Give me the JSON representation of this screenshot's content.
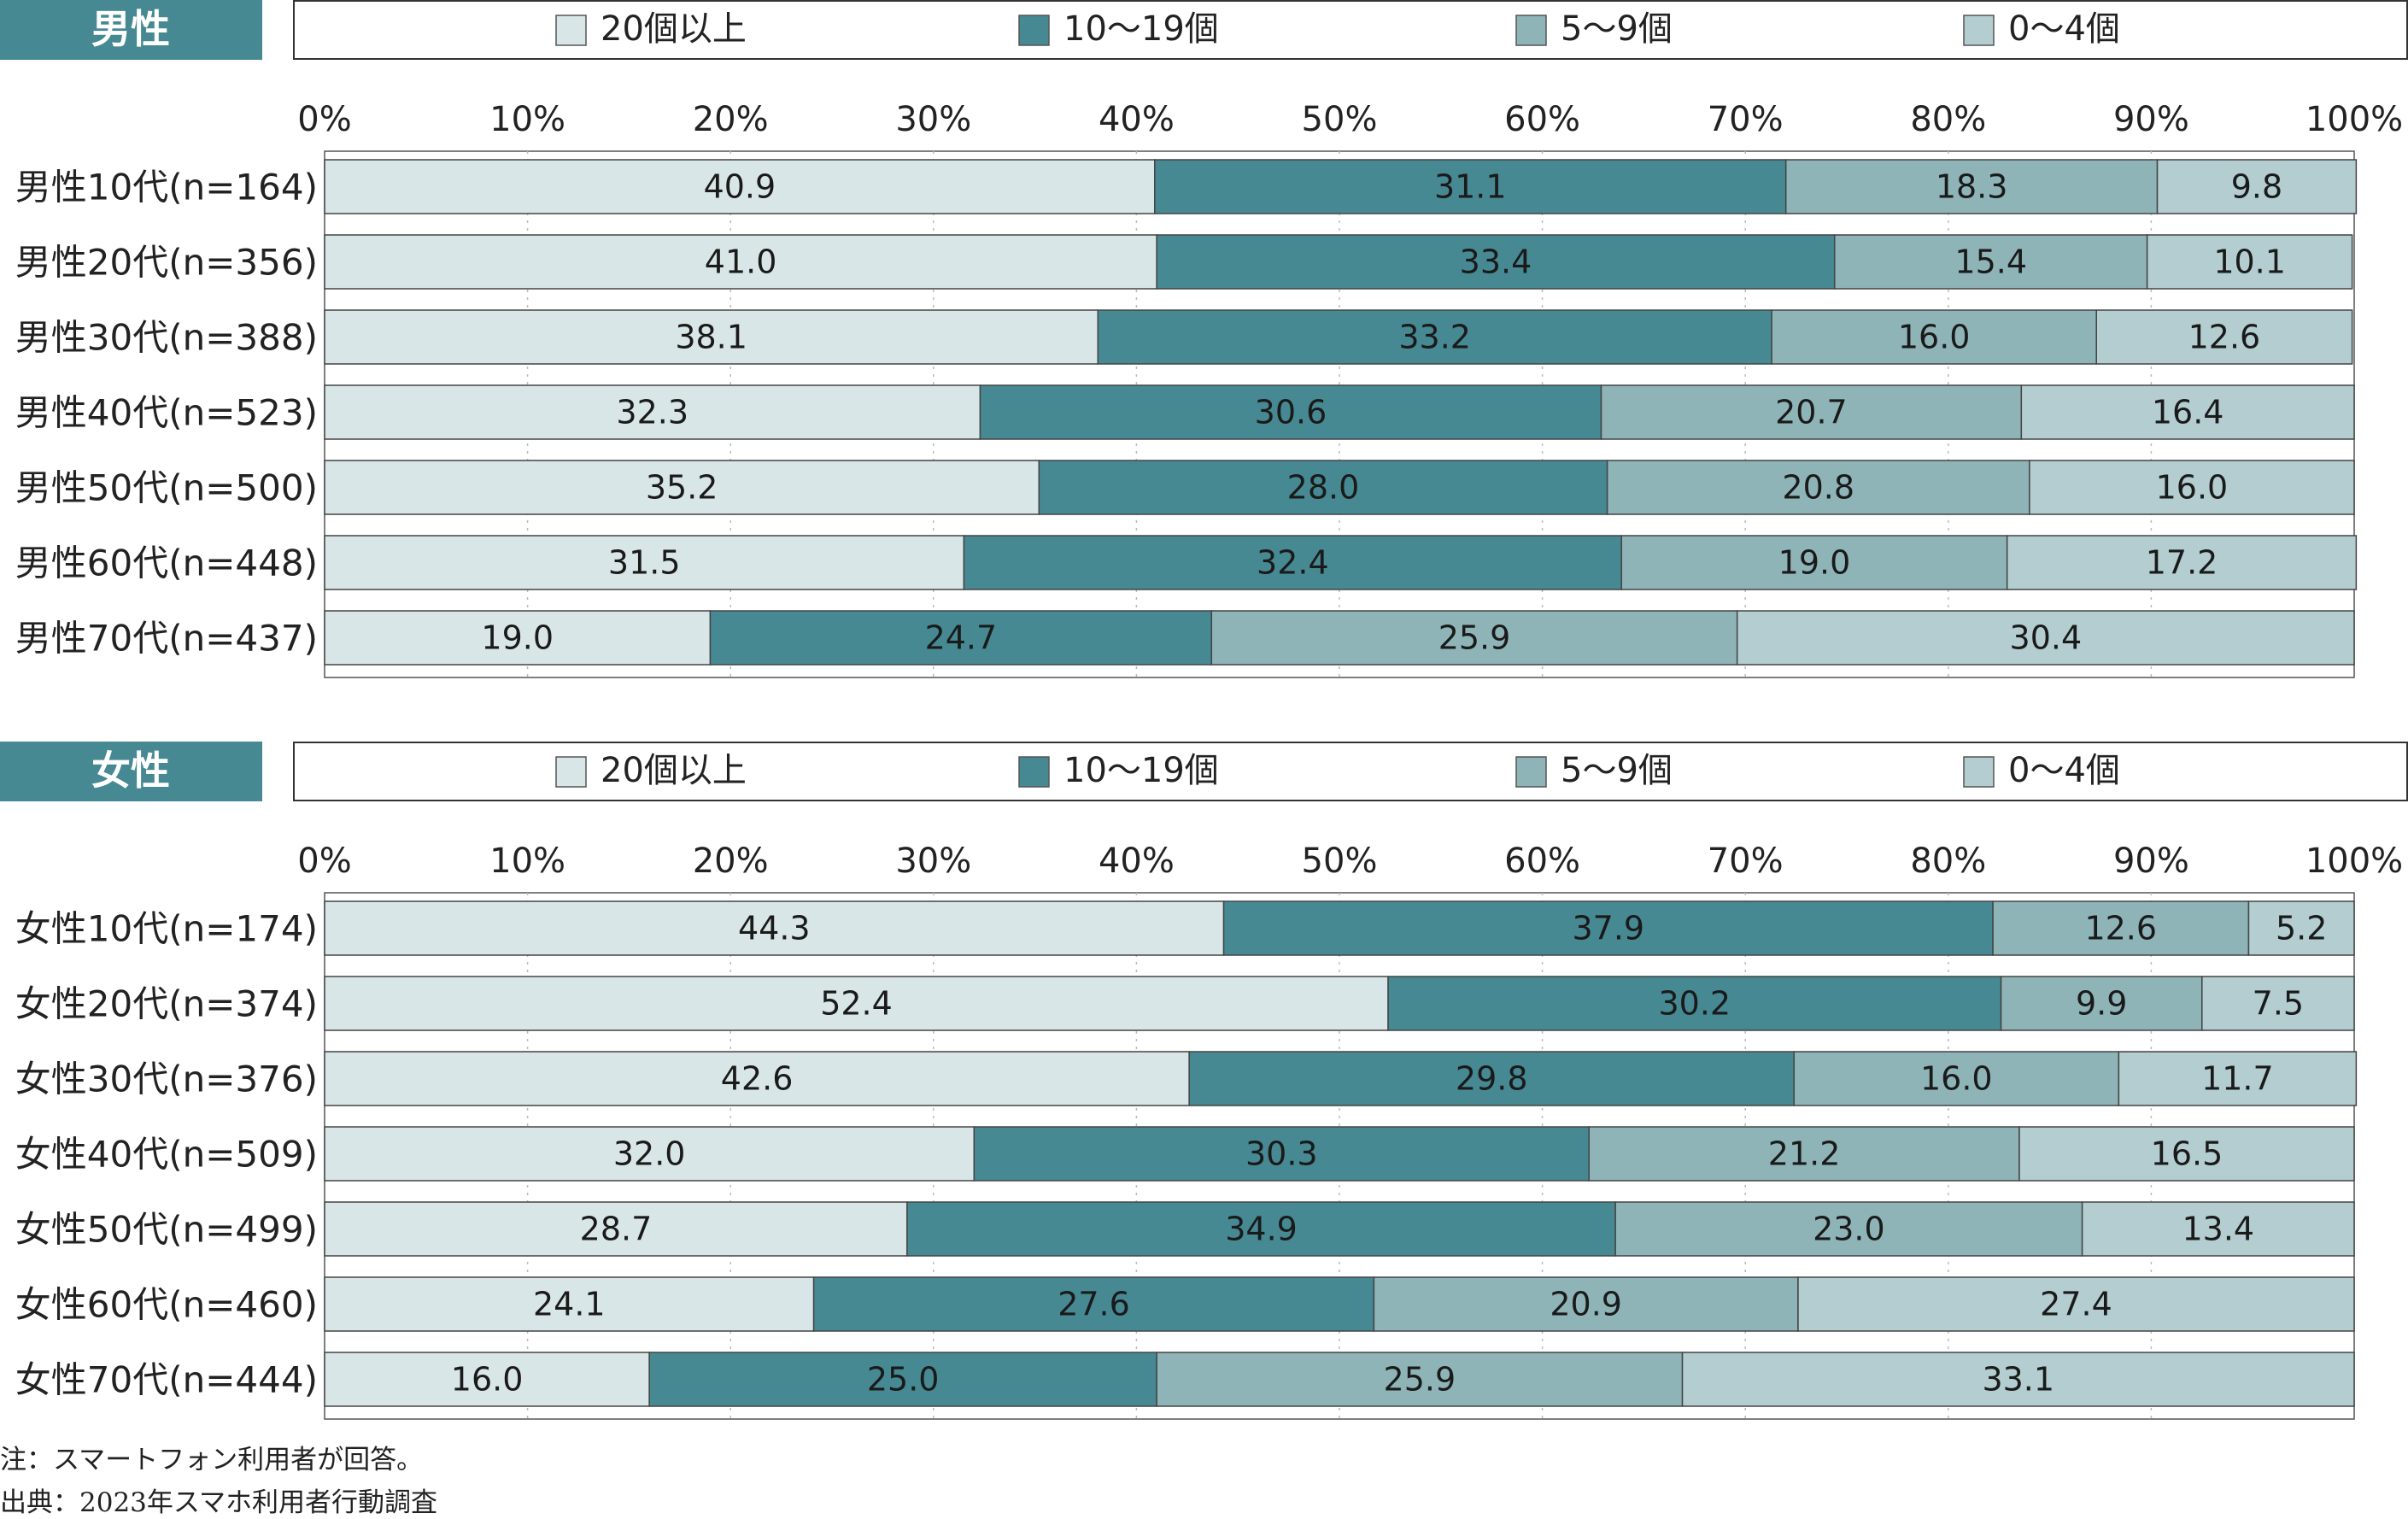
{
  "colors": {
    "c20plus": "#d9e6e7",
    "c10to19": "#468993",
    "c5to9": "#8eb4b8",
    "c0to4": "#b3cdd0",
    "header_bg": "#468993",
    "grid": "#bbbbbb",
    "text": "#222222"
  },
  "notes": {
    "note": "注：スマートフォン利用者が回答。",
    "source": "出典：2023年スマホ利用者行動調査"
  },
  "chart_data": [
    {
      "type": "bar",
      "orientation": "horizontal",
      "stacked": true,
      "title": "男性",
      "xlim": [
        0,
        100
      ],
      "ticks": [
        "0%",
        "10%",
        "20%",
        "30%",
        "40%",
        "50%",
        "60%",
        "70%",
        "80%",
        "90%",
        "100%"
      ],
      "legend_position": "top",
      "categories": [
        "男性10代(n=164)",
        "男性20代(n=356)",
        "男性30代(n=388)",
        "男性40代(n=523)",
        "男性50代(n=500)",
        "男性60代(n=448)",
        "男性70代(n=437)"
      ],
      "series": [
        {
          "name": "20個以上",
          "color": "#d9e6e7",
          "values": [
            40.9,
            41.0,
            38.1,
            32.3,
            35.2,
            31.5,
            19.0
          ]
        },
        {
          "name": "10～19個",
          "color": "#468993",
          "values": [
            31.1,
            33.4,
            33.2,
            30.6,
            28.0,
            32.4,
            24.7
          ]
        },
        {
          "name": "5～9個",
          "color": "#8eb4b8",
          "values": [
            18.3,
            15.4,
            16.0,
            20.7,
            20.8,
            19.0,
            25.9
          ]
        },
        {
          "name": "0～4個",
          "color": "#b3cdd0",
          "values": [
            9.8,
            10.1,
            12.6,
            16.4,
            16.0,
            17.2,
            30.4
          ]
        }
      ]
    },
    {
      "type": "bar",
      "orientation": "horizontal",
      "stacked": true,
      "title": "女性",
      "xlim": [
        0,
        100
      ],
      "ticks": [
        "0%",
        "10%",
        "20%",
        "30%",
        "40%",
        "50%",
        "60%",
        "70%",
        "80%",
        "90%",
        "100%"
      ],
      "legend_position": "top",
      "categories": [
        "女性10代(n=174)",
        "女性20代(n=374)",
        "女性30代(n=376)",
        "女性40代(n=509)",
        "女性50代(n=499)",
        "女性60代(n=460)",
        "女性70代(n=444)"
      ],
      "series": [
        {
          "name": "20個以上",
          "color": "#d9e6e7",
          "values": [
            44.3,
            52.4,
            42.6,
            32.0,
            28.7,
            24.1,
            16.0
          ]
        },
        {
          "name": "10～19個",
          "color": "#468993",
          "values": [
            37.9,
            30.2,
            29.8,
            30.3,
            34.9,
            27.6,
            25.0
          ]
        },
        {
          "name": "5～9個",
          "color": "#8eb4b8",
          "values": [
            12.6,
            9.9,
            16.0,
            21.2,
            23.0,
            20.9,
            25.9
          ]
        },
        {
          "name": "0～4個",
          "color": "#b3cdd0",
          "values": [
            5.2,
            7.5,
            11.7,
            16.5,
            13.4,
            27.4,
            33.1
          ]
        }
      ]
    }
  ]
}
